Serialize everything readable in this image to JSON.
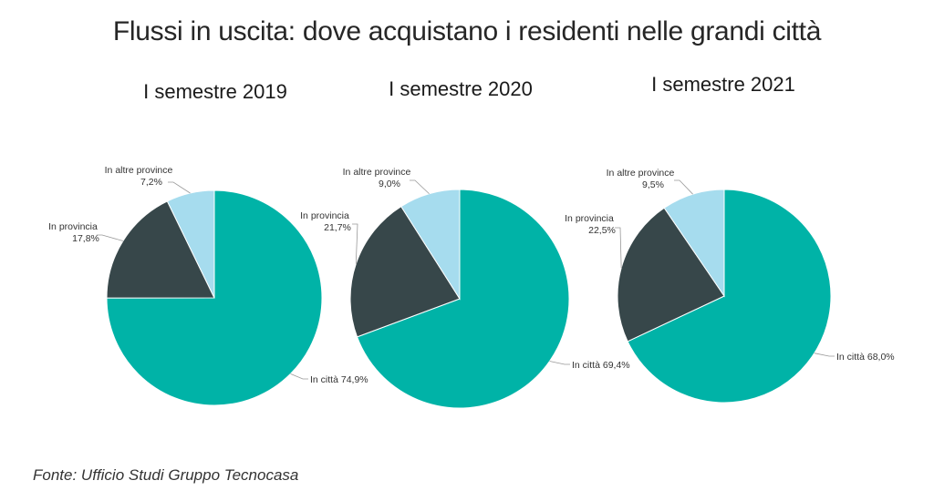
{
  "title": "Flussi in uscita: dove acquistano i residenti nelle grandi città",
  "source": "Fonte: Ufficio Studi Gruppo Tecnocasa",
  "colors": {
    "In città": "#00b3a7",
    "In provincia": "#37474a",
    "In altre province": "#a6dcee"
  },
  "chart_data": [
    {
      "type": "pie",
      "title": "I semestre 2019",
      "slices": [
        {
          "name": "In città",
          "value": 74.9,
          "label": "74,9%"
        },
        {
          "name": "In provincia",
          "value": 17.8,
          "label": "17,8%"
        },
        {
          "name": "In altre province",
          "value": 7.2,
          "label": "7,2%"
        }
      ]
    },
    {
      "type": "pie",
      "title": "I semestre 2020",
      "slices": [
        {
          "name": "In città",
          "value": 69.4,
          "label": "69,4%"
        },
        {
          "name": "In provincia",
          "value": 21.7,
          "label": "21,7%"
        },
        {
          "name": "In altre province",
          "value": 9.0,
          "label": "9,0%"
        }
      ]
    },
    {
      "type": "pie",
      "title": "I semestre 2021",
      "slices": [
        {
          "name": "In città",
          "value": 68.0,
          "label": "68,0%"
        },
        {
          "name": "In provincia",
          "value": 22.5,
          "label": "22,5%"
        },
        {
          "name": "In altre province",
          "value": 9.5,
          "label": "9,5%"
        }
      ]
    }
  ]
}
